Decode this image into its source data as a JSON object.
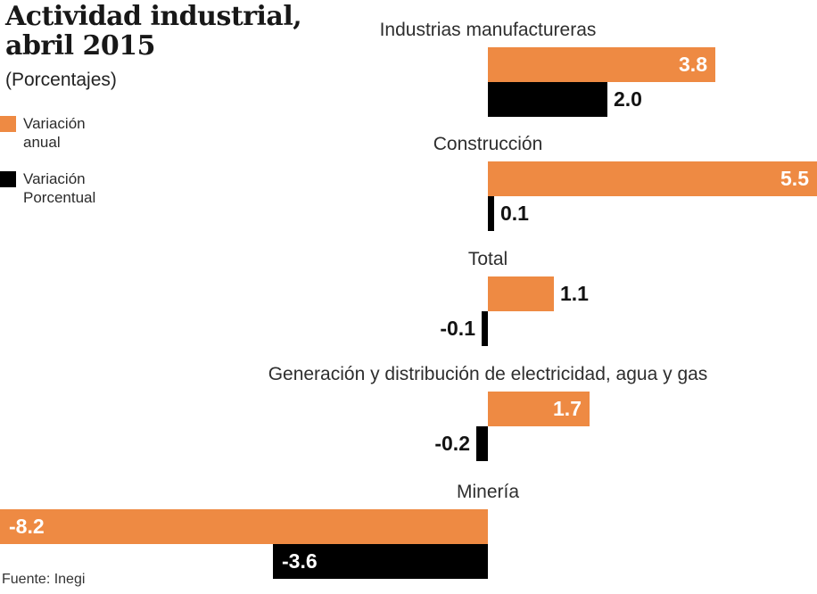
{
  "header": {
    "title_line1": "Actividad industrial,",
    "title_line2": "abril 2015",
    "subtitle": "(Porcentajes)"
  },
  "legend": {
    "items": [
      {
        "label": "Variación anual",
        "series": "annual",
        "color": "#ee8a43"
      },
      {
        "label": "Variación Porcentual",
        "series": "monthly",
        "color": "#000000"
      }
    ]
  },
  "footer": {
    "source": "Fuente: Inegi"
  },
  "colors": {
    "accent_orange": "#ee8a43",
    "bar_black": "#000000",
    "label_inside": "#ffffff",
    "label_outside": "#121212"
  },
  "chart_data": {
    "type": "bar",
    "orientation": "horizontal",
    "title": "Actividad industrial, abril 2015",
    "subtitle": "(Porcentajes)",
    "source": "Fuente: Inegi",
    "xlim": [
      -8.2,
      5.5
    ],
    "baseline": 0,
    "grid": false,
    "legend_position": "top-left",
    "categories": [
      "Industrias manufactureras",
      "Construcción",
      "Total",
      "Generación y distribución de electricidad, agua y gas",
      "Minería"
    ],
    "series": [
      {
        "id": "annual",
        "name": "Variación anual",
        "color": "#ee8a43",
        "values": [
          3.8,
          5.5,
          1.1,
          1.7,
          -8.2
        ],
        "labels": [
          "3.8",
          "5.5",
          "1.1",
          "1.7",
          "-8.2"
        ],
        "label_placement": [
          "inside",
          "inside",
          "outside",
          "inside",
          "inside"
        ]
      },
      {
        "id": "monthly",
        "name": "Variación Porcentual",
        "color": "#000000",
        "values": [
          2.0,
          0.1,
          -0.1,
          -0.2,
          -3.6
        ],
        "labels": [
          "2.0",
          "0.1",
          "-0.1",
          "-0.2",
          "-3.6"
        ],
        "label_placement": [
          "outside",
          "outside",
          "outside",
          "outside",
          "inside"
        ]
      }
    ]
  }
}
